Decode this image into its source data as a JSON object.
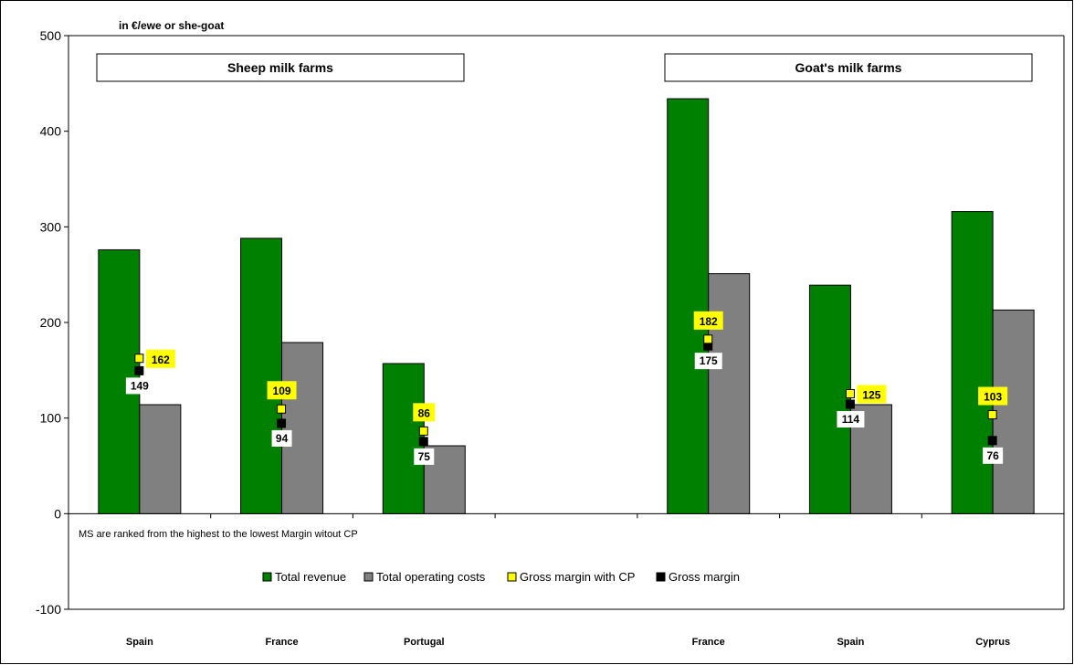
{
  "chart_data": {
    "type": "bar",
    "unit_label": "in €/ewe or she-goat",
    "ylim": [
      -100,
      500
    ],
    "yticks": [
      -100,
      0,
      100,
      200,
      300,
      400,
      500
    ],
    "grid": false,
    "legend_position": "bottom",
    "groups": [
      {
        "title": "Sheep milk farms",
        "categories": [
          "Spain",
          "France",
          "Portugal"
        ]
      },
      {
        "title": "Goat's milk farms",
        "categories": [
          "France",
          "Spain",
          "Cyprus"
        ]
      }
    ],
    "categories": [
      "Spain",
      "France",
      "Portugal",
      "",
      "France",
      "Spain",
      "Cyprus"
    ],
    "series": [
      {
        "name": "Total revenue",
        "kind": "bar",
        "color": "#008000",
        "values": [
          276,
          288,
          157,
          null,
          434,
          239,
          316
        ]
      },
      {
        "name": "Total operating costs",
        "kind": "bar",
        "color": "#808080",
        "values": [
          114,
          179,
          71,
          null,
          251,
          114,
          213
        ]
      },
      {
        "name": "Gross margin with CP",
        "kind": "marker",
        "color": "#ffff00",
        "values": [
          162,
          109,
          86,
          null,
          182,
          125,
          103
        ]
      },
      {
        "name": "Gross margin",
        "kind": "marker",
        "color": "#000000",
        "values": [
          149,
          94,
          75,
          null,
          175,
          114,
          76
        ]
      }
    ],
    "annotation": "MS are ranked from the highest to the lowest Margin witout CP"
  }
}
